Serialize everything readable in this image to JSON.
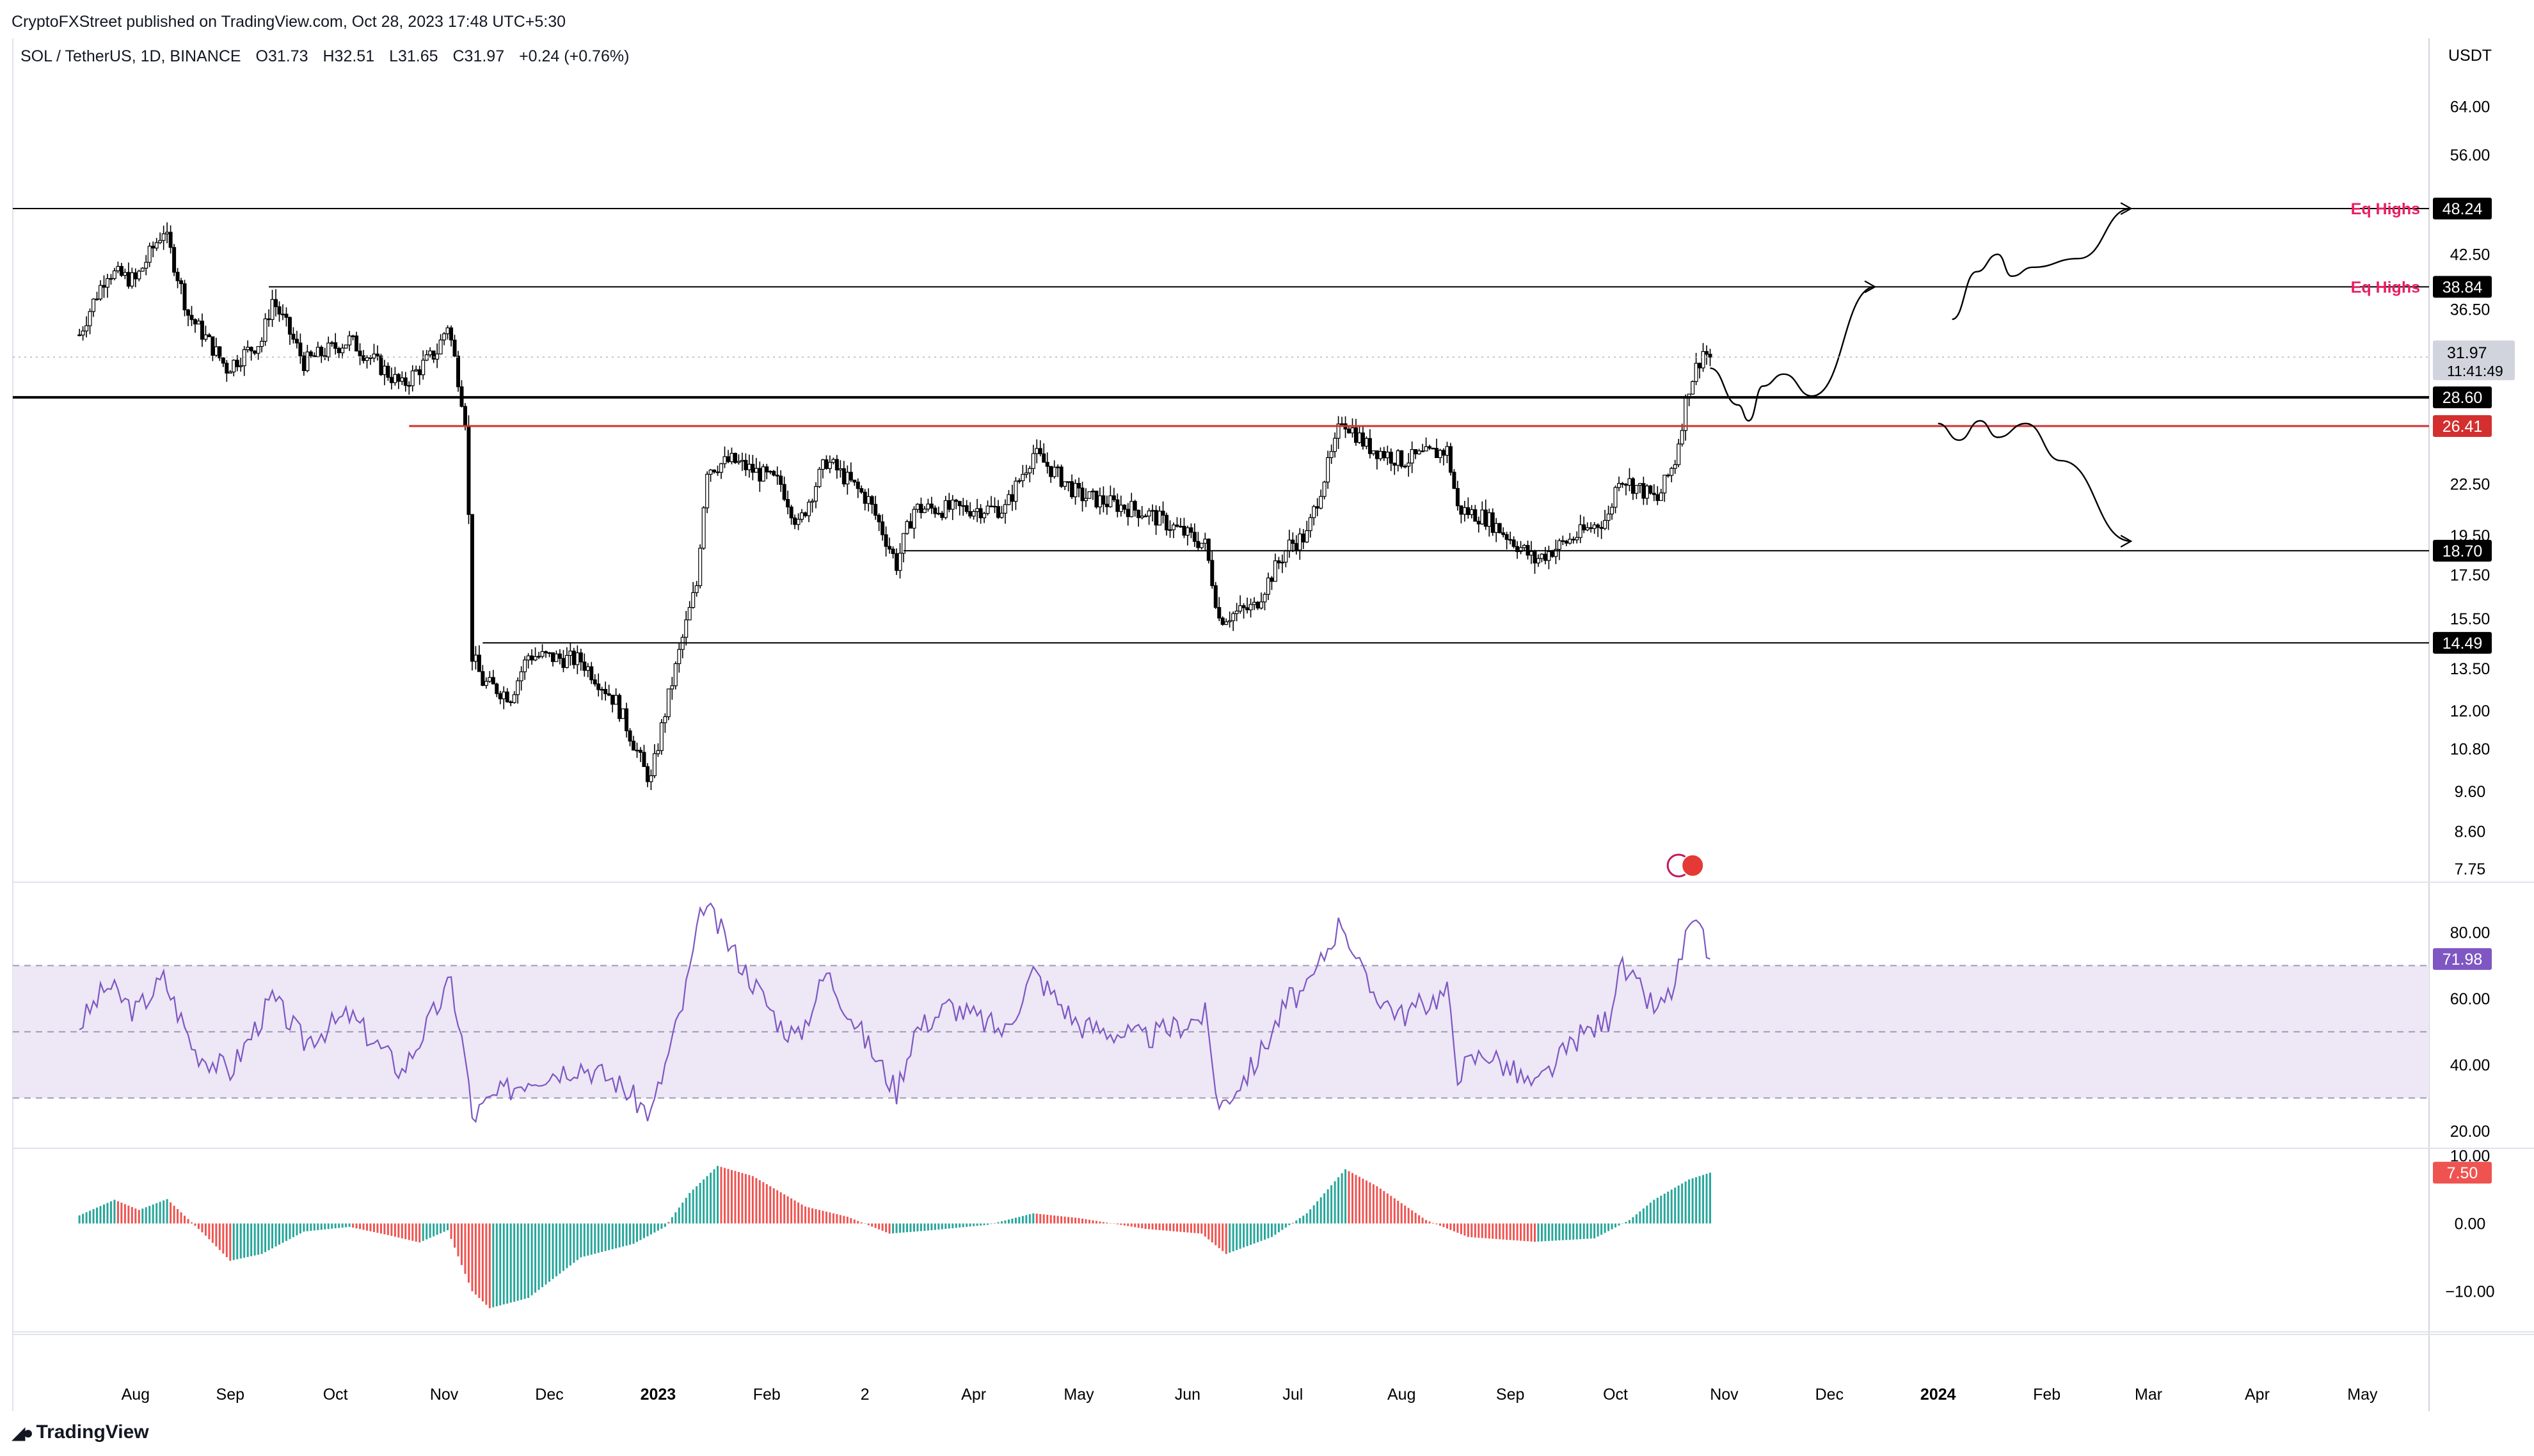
{
  "header": {
    "publish_line": "CryptoFXStreet published on TradingView.com, Oct 28, 2023 17:48 UTC+5:30",
    "symbol": "SOL / TetherUS, 1D, BINANCE",
    "open": "O31.73",
    "high": "H32.51",
    "low": "L31.65",
    "close": "C31.97",
    "change": "+0.24 (+0.76%)"
  },
  "footer": {
    "brand": "TradingView"
  },
  "colors": {
    "up": "#26a69a",
    "down": "#ef5350",
    "rsi_line": "#7e57c2",
    "rsi_band": "#ede7f6",
    "eq_label": "#e91e63",
    "red_level": "#d32f2f",
    "candle": "#000000"
  },
  "chart_data": [
    {
      "type": "candlestick",
      "title": "SOL / TetherUS, 1D, BINANCE",
      "currency_label": "USDT",
      "y_scale": "log",
      "ylim": [
        7.75,
        72
      ],
      "y_ticks": [
        "64.00",
        "56.00",
        "42.50",
        "36.50",
        "22.50",
        "19.50",
        "17.50",
        "15.50",
        "13.50",
        "12.00",
        "10.80",
        "9.60",
        "8.60",
        "7.75"
      ],
      "x_ticks": [
        "Aug",
        "Sep",
        "Oct",
        "Nov",
        "Dec",
        "2023",
        "Feb",
        "2",
        "Apr",
        "May",
        "Jun",
        "Jul",
        "Aug",
        "Sep",
        "Oct",
        "Nov",
        "Dec",
        "2024",
        "Feb",
        "Mar",
        "Apr",
        "May"
      ],
      "bold_ticks": [
        "2023",
        "2024"
      ],
      "path_close": [
        [
          "2022-07-20",
          34.0
        ],
        [
          "2022-07-28",
          40.5
        ],
        [
          "2022-08-05",
          39.5
        ],
        [
          "2022-08-13",
          45.5
        ],
        [
          "2022-08-20",
          36.0
        ],
        [
          "2022-08-31",
          31.0
        ],
        [
          "2022-09-10",
          33.5
        ],
        [
          "2022-09-13",
          37.5
        ],
        [
          "2022-09-22",
          31.5
        ],
        [
          "2022-10-05",
          33.5
        ],
        [
          "2022-10-20",
          29.5
        ],
        [
          "2022-10-30",
          32.5
        ],
        [
          "2022-11-02",
          35.0
        ],
        [
          "2022-11-07",
          27.0
        ],
        [
          "2022-11-09",
          14.0
        ],
        [
          "2022-11-12",
          13.0
        ],
        [
          "2022-11-20",
          12.5
        ],
        [
          "2022-11-25",
          14.0
        ],
        [
          "2022-12-10",
          13.8
        ],
        [
          "2022-12-20",
          12.3
        ],
        [
          "2022-12-28",
          10.2
        ],
        [
          "2022-12-30",
          9.9
        ],
        [
          "2023-01-06",
          13.5
        ],
        [
          "2023-01-12",
          17.0
        ],
        [
          "2023-01-15",
          23.5
        ],
        [
          "2023-01-22",
          24.0
        ],
        [
          "2023-02-05",
          22.5
        ],
        [
          "2023-02-10",
          20.0
        ],
        [
          "2023-02-18",
          24.0
        ],
        [
          "2023-03-02",
          21.5
        ],
        [
          "2023-03-10",
          18.0
        ],
        [
          "2023-03-15",
          21.0
        ],
        [
          "2023-03-25",
          21.0
        ],
        [
          "2023-04-10",
          21.0
        ],
        [
          "2023-04-18",
          24.5
        ],
        [
          "2023-05-01",
          21.8
        ],
        [
          "2023-05-20",
          20.8
        ],
        [
          "2023-06-06",
          19.0
        ],
        [
          "2023-06-10",
          15.5
        ],
        [
          "2023-06-20",
          16.0
        ],
        [
          "2023-06-30",
          19.0
        ],
        [
          "2023-07-05",
          19.5
        ],
        [
          "2023-07-13",
          25.0
        ],
        [
          "2023-07-15",
          27.0
        ],
        [
          "2023-07-22",
          25.0
        ],
        [
          "2023-08-01",
          24.0
        ],
        [
          "2023-08-14",
          24.7
        ],
        [
          "2023-08-17",
          21.0
        ],
        [
          "2023-08-25",
          20.5
        ],
        [
          "2023-09-08",
          18.2
        ],
        [
          "2023-09-20",
          19.5
        ],
        [
          "2023-09-29",
          20.5
        ],
        [
          "2023-10-02",
          23.0
        ],
        [
          "2023-10-13",
          21.5
        ],
        [
          "2023-10-18",
          24.0
        ],
        [
          "2023-10-22",
          29.5
        ],
        [
          "2023-10-26",
          32.5
        ],
        [
          "2023-10-28",
          31.97
        ]
      ],
      "last_price": "31.97",
      "countdown": "11:41:49",
      "levels": [
        {
          "price": 48.24,
          "label": "48.24",
          "start": "2022-07-01",
          "style": "thin",
          "note": "Eq Highs"
        },
        {
          "price": 38.84,
          "label": "38.84",
          "start": "2022-09-12",
          "style": "thin",
          "note": "Eq Highs"
        },
        {
          "price": 28.6,
          "label": "28.60",
          "start": "2022-07-01",
          "style": "bold"
        },
        {
          "price": 26.41,
          "label": "26.41",
          "start": "2022-10-22",
          "style": "red"
        },
        {
          "price": 18.7,
          "label": "18.70",
          "start": "2023-03-12",
          "style": "thin"
        },
        {
          "price": 14.49,
          "label": "14.49",
          "start": "2022-11-12",
          "style": "thin"
        }
      ],
      "projections": [
        [
          [
            "2023-10-28",
            31.0
          ],
          [
            "2023-11-05",
            28.0
          ],
          [
            "2023-11-08",
            26.8
          ],
          [
            "2023-11-12",
            29.5
          ],
          [
            "2023-11-18",
            30.5
          ],
          [
            "2023-11-26",
            28.7
          ],
          [
            "2023-12-14",
            38.84
          ]
        ],
        [
          [
            "2024-01-05",
            35.5
          ],
          [
            "2024-01-12",
            40.5
          ],
          [
            "2024-01-18",
            42.5
          ],
          [
            "2024-01-22",
            40.0
          ],
          [
            "2024-01-28",
            41.0
          ],
          [
            "2024-02-10",
            42.0
          ],
          [
            "2024-02-25",
            48.24
          ]
        ],
        [
          [
            "2024-01-01",
            26.6
          ],
          [
            "2024-01-07",
            25.4
          ],
          [
            "2024-01-13",
            26.8
          ],
          [
            "2024-01-18",
            25.6
          ],
          [
            "2024-01-26",
            26.6
          ],
          [
            "2024-02-05",
            24.0
          ],
          [
            "2024-02-25",
            19.2
          ]
        ]
      ]
    },
    {
      "type": "line",
      "name": "RSI",
      "ylim": [
        15,
        95
      ],
      "y_ticks": [
        "80.00",
        "60.00",
        "40.00",
        "20.00"
      ],
      "band": [
        30,
        70
      ],
      "midline": 50,
      "last_value": "71.98",
      "path": [
        [
          "2022-07-20",
          52
        ],
        [
          "2022-07-28",
          64
        ],
        [
          "2022-08-05",
          56
        ],
        [
          "2022-08-13",
          66
        ],
        [
          "2022-08-22",
          44
        ],
        [
          "2022-09-01",
          38
        ],
        [
          "2022-09-13",
          60
        ],
        [
          "2022-09-22",
          47
        ],
        [
          "2022-10-05",
          55
        ],
        [
          "2022-10-20",
          38
        ],
        [
          "2022-11-03",
          65
        ],
        [
          "2022-11-07",
          42
        ],
        [
          "2022-11-09",
          24
        ],
        [
          "2022-11-15",
          30
        ],
        [
          "2022-11-25",
          36
        ],
        [
          "2022-12-10",
          40
        ],
        [
          "2022-12-20",
          35
        ],
        [
          "2022-12-30",
          25
        ],
        [
          "2023-01-08",
          58
        ],
        [
          "2023-01-14",
          89
        ],
        [
          "2023-01-22",
          75
        ],
        [
          "2023-02-05",
          52
        ],
        [
          "2023-02-10",
          48
        ],
        [
          "2023-02-18",
          68
        ],
        [
          "2023-03-03",
          44
        ],
        [
          "2023-03-10",
          32
        ],
        [
          "2023-03-15",
          50
        ],
        [
          "2023-03-25",
          58
        ],
        [
          "2023-04-10",
          50
        ],
        [
          "2023-04-18",
          68
        ],
        [
          "2023-05-01",
          52
        ],
        [
          "2023-05-20",
          48
        ],
        [
          "2023-06-06",
          55
        ],
        [
          "2023-06-10",
          27
        ],
        [
          "2023-06-20",
          40
        ],
        [
          "2023-06-30",
          60
        ],
        [
          "2023-07-05",
          62
        ],
        [
          "2023-07-13",
          80
        ],
        [
          "2023-07-15",
          84
        ],
        [
          "2023-07-22",
          64
        ],
        [
          "2023-08-01",
          55
        ],
        [
          "2023-08-14",
          62
        ],
        [
          "2023-08-17",
          38
        ],
        [
          "2023-08-25",
          44
        ],
        [
          "2023-09-08",
          33
        ],
        [
          "2023-09-20",
          48
        ],
        [
          "2023-09-29",
          54
        ],
        [
          "2023-10-02",
          70
        ],
        [
          "2023-10-13",
          56
        ],
        [
          "2023-10-18",
          64
        ],
        [
          "2023-10-22",
          82
        ],
        [
          "2023-10-26",
          78
        ],
        [
          "2023-10-28",
          71.98
        ]
      ]
    },
    {
      "type": "bar",
      "name": "Momentum histogram",
      "ylim": [
        -16,
        11
      ],
      "y_ticks": [
        "10.00",
        "0.00",
        "−10.00"
      ],
      "last_value": "7.50",
      "path": [
        [
          "2022-07-20",
          1.2
        ],
        [
          "2022-07-30",
          3.5
        ],
        [
          "2022-08-06",
          2.0
        ],
        [
          "2022-08-14",
          3.6
        ],
        [
          "2022-08-25",
          -1.8
        ],
        [
          "2022-09-01",
          -5.5
        ],
        [
          "2022-09-10",
          -4.5
        ],
        [
          "2022-09-22",
          -1.2
        ],
        [
          "2022-10-05",
          -0.5
        ],
        [
          "2022-10-15",
          -1.6
        ],
        [
          "2022-10-25",
          -2.8
        ],
        [
          "2022-11-02",
          -1.0
        ],
        [
          "2022-11-09",
          -10.0
        ],
        [
          "2022-11-14",
          -12.5
        ],
        [
          "2022-11-25",
          -11.0
        ],
        [
          "2022-12-10",
          -5.0
        ],
        [
          "2022-12-25",
          -3.0
        ],
        [
          "2023-01-03",
          -0.5
        ],
        [
          "2023-01-10",
          4.5
        ],
        [
          "2023-01-18",
          8.5
        ],
        [
          "2023-01-28",
          7.0
        ],
        [
          "2023-02-12",
          2.5
        ],
        [
          "2023-02-24",
          1.0
        ],
        [
          "2023-03-08",
          -1.5
        ],
        [
          "2023-03-20",
          -1.0
        ],
        [
          "2023-04-05",
          -0.2
        ],
        [
          "2023-04-18",
          1.5
        ],
        [
          "2023-05-01",
          0.8
        ],
        [
          "2023-05-20",
          -0.8
        ],
        [
          "2023-06-05",
          -1.5
        ],
        [
          "2023-06-12",
          -4.5
        ],
        [
          "2023-06-25",
          -2.0
        ],
        [
          "2023-07-05",
          1.5
        ],
        [
          "2023-07-16",
          8.0
        ],
        [
          "2023-07-25",
          5.5
        ],
        [
          "2023-08-08",
          0.5
        ],
        [
          "2023-08-20",
          -2.0
        ],
        [
          "2023-09-08",
          -2.7
        ],
        [
          "2023-09-25",
          -2.2
        ],
        [
          "2023-10-05",
          0.5
        ],
        [
          "2023-10-12",
          3.5
        ],
        [
          "2023-10-22",
          6.5
        ],
        [
          "2023-10-28",
          7.5
        ]
      ]
    }
  ]
}
